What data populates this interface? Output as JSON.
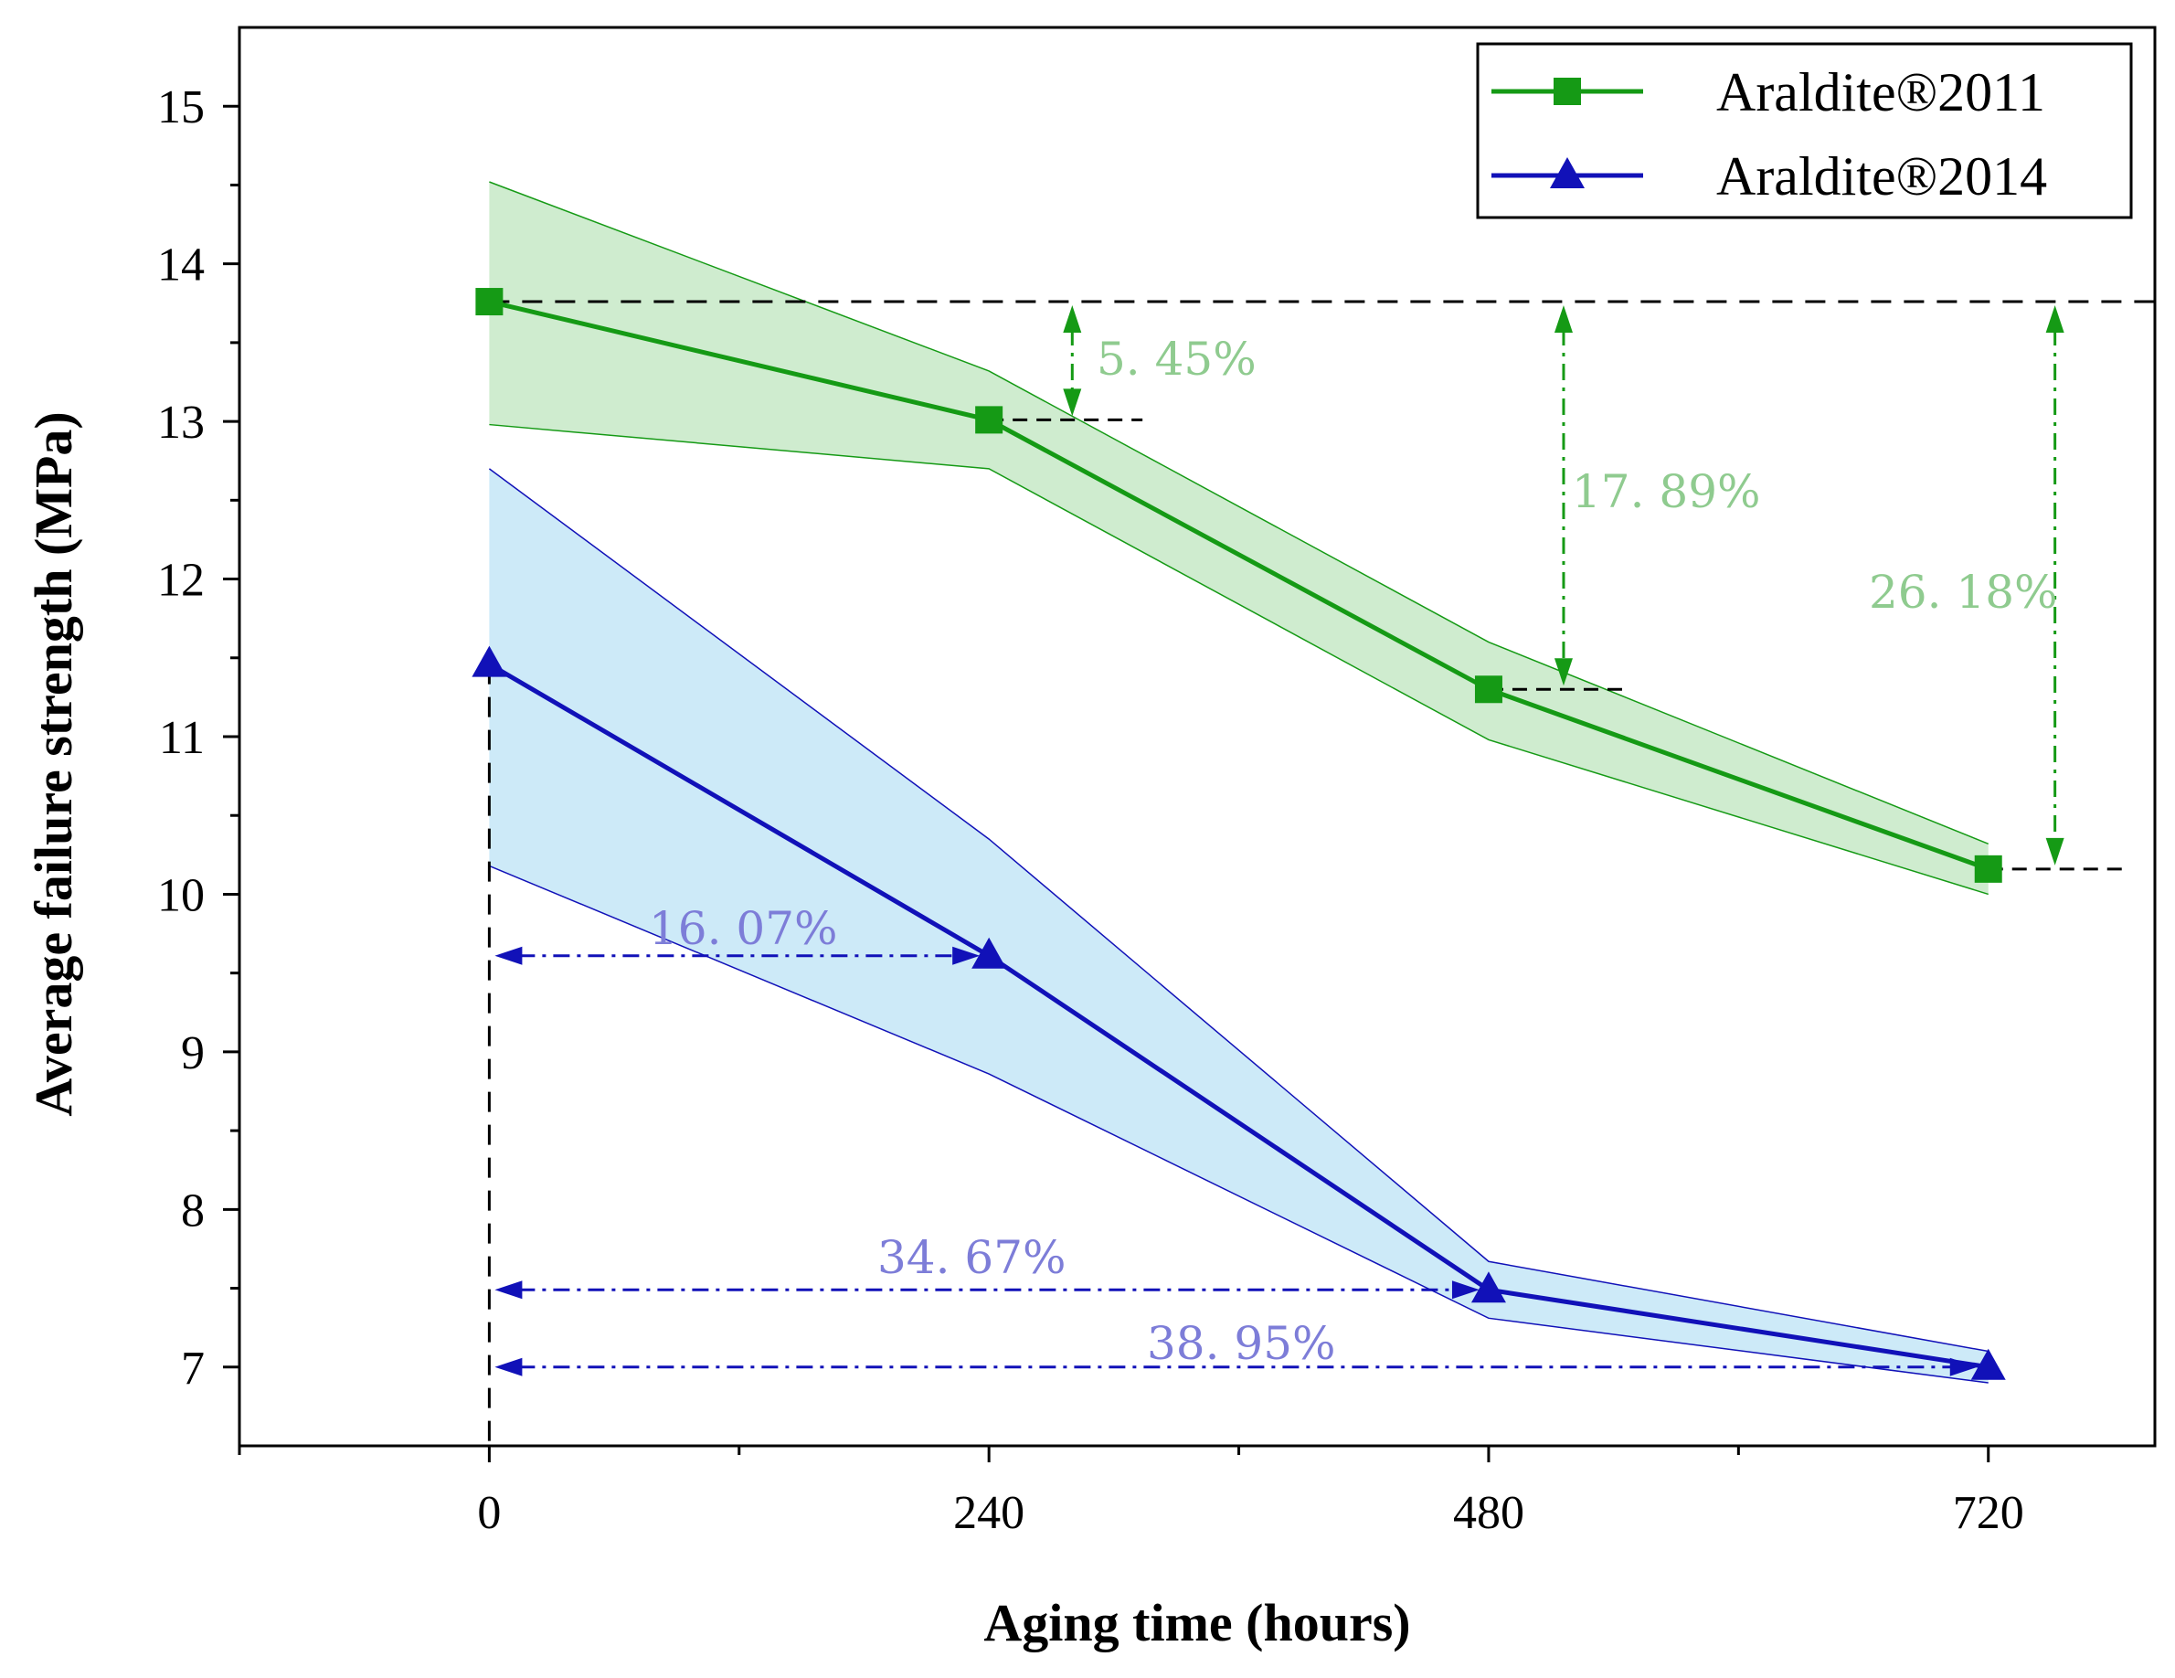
{
  "chart_data": {
    "type": "line",
    "title": "",
    "xlabel": "Aging time (hours)",
    "ylabel": "Average failure strength (MPa)",
    "x": [
      0,
      240,
      480,
      720
    ],
    "xlim": [
      -120,
      800
    ],
    "ylim": [
      6.5,
      15.5
    ],
    "xticks": [
      0,
      240,
      480,
      720
    ],
    "yticks": [
      7,
      8,
      9,
      10,
      11,
      12,
      13,
      14,
      15
    ],
    "grid": false,
    "legend_position": "top-right",
    "series": [
      {
        "name": "Araldite®2011",
        "marker": "square",
        "color": "#159a15",
        "band_color": "#cfeccf",
        "values": [
          13.76,
          13.01,
          11.3,
          10.16
        ],
        "upper": [
          14.52,
          13.32,
          11.6,
          10.32
        ],
        "lower": [
          12.98,
          12.7,
          10.98,
          10.0
        ]
      },
      {
        "name": "Araldite®2014",
        "marker": "triangle",
        "color": "#1111b8",
        "band_color": "#cdeaf8",
        "values": [
          11.46,
          9.61,
          7.49,
          7.0
        ],
        "upper": [
          12.7,
          10.35,
          7.67,
          7.1
        ],
        "lower": [
          10.18,
          8.86,
          7.31,
          6.9
        ]
      }
    ],
    "annotations": [
      {
        "text": "5. 45%",
        "series": "Araldite®2011",
        "from_x": 0,
        "to_x": 240,
        "direction": "vertical"
      },
      {
        "text": "17. 89%",
        "series": "Araldite®2011",
        "from_x": 0,
        "to_x": 480,
        "direction": "vertical"
      },
      {
        "text": "26. 18%",
        "series": "Araldite®2011",
        "from_x": 0,
        "to_x": 720,
        "direction": "vertical"
      },
      {
        "text": "16. 07%",
        "series": "Araldite®2014",
        "from_x": 0,
        "to_x": 240,
        "direction": "horizontal"
      },
      {
        "text": "34. 67%",
        "series": "Araldite®2014",
        "from_x": 0,
        "to_x": 480,
        "direction": "horizontal"
      },
      {
        "text": "38. 95%",
        "series": "Araldite®2014",
        "from_x": 0,
        "to_x": 720,
        "direction": "horizontal"
      }
    ],
    "annotation_colors": {
      "Araldite®2011": "#8fcb8f",
      "Araldite®2014": "#7d7dd8"
    }
  }
}
